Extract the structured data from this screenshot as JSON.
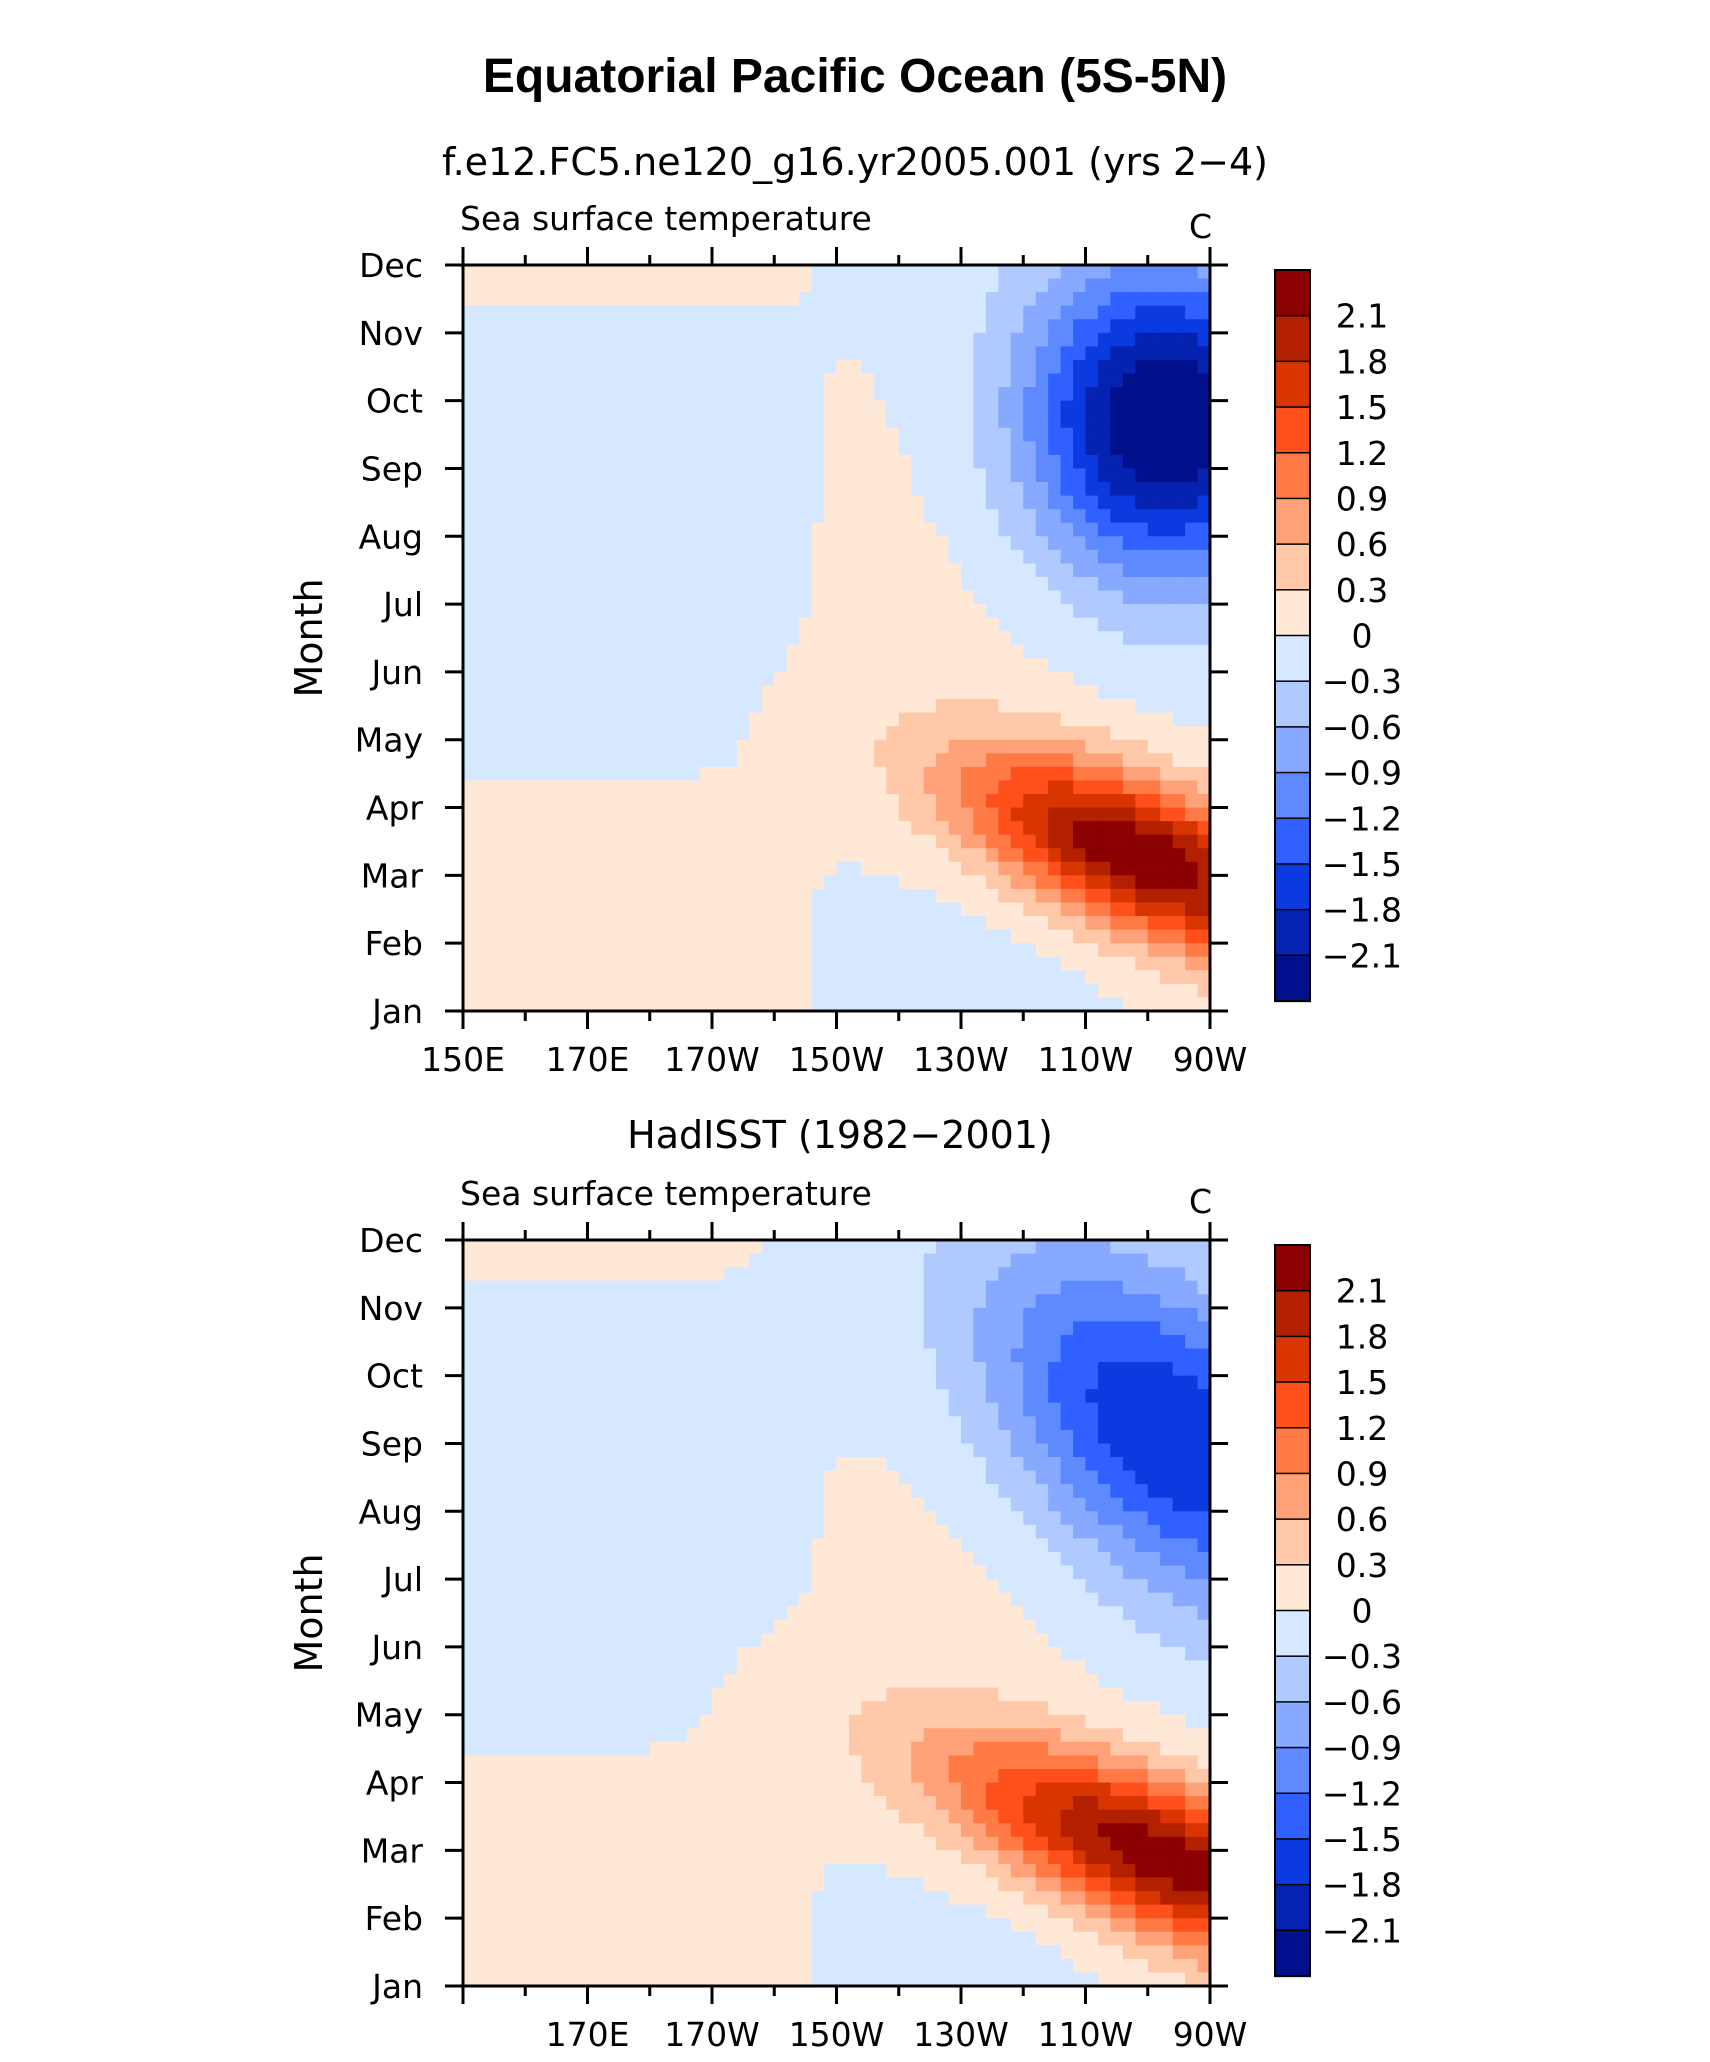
{
  "page_title": "Equatorial Pacific Ocean (5S-5N)",
  "legend_levels": [
    "2.1",
    "1.8",
    "1.5",
    "1.2",
    "0.9",
    "0.6",
    "0.3",
    "0",
    "−0.3",
    "−0.6",
    "−0.9",
    "−1.2",
    "−1.5",
    "−1.8",
    "−2.1"
  ],
  "colors": {
    "bins": [
      "#8b0000",
      "#b22000",
      "#d93500",
      "#ff4f1a",
      "#ff7a45",
      "#ffa27a",
      "#ffc8a8",
      "#ffe8d6",
      "#d6e8ff",
      "#b0caff",
      "#87a9ff",
      "#5f89ff",
      "#3060ff",
      "#0b3ae0",
      "#0522b0",
      "#00108a"
    ]
  },
  "chart_data": [
    {
      "type": "heatmap",
      "title": "f.e12.FC5.ne120_g16.yr2005.001 (yrs 2−4)",
      "left_string": "Sea surface temperature",
      "right_string": "C",
      "xlabel": "",
      "ylabel": "Month",
      "xlim": [
        150,
        270
      ],
      "x_tick_values": [
        150,
        170,
        190,
        210,
        230,
        250,
        270
      ],
      "x_tick_labels": [
        "150E",
        "170E",
        "170W",
        "150W",
        "130W",
        "110W",
        "90W"
      ],
      "y_tick_labels": [
        "Jan",
        "Feb",
        "Mar",
        "Apr",
        "May",
        "Jun",
        "Jul",
        "Aug",
        "Sep",
        "Oct",
        "Nov",
        "Dec"
      ],
      "units": "C",
      "levels": [
        -2.1,
        -1.8,
        -1.5,
        -1.2,
        -0.9,
        -0.6,
        -0.3,
        0,
        0.3,
        0.6,
        0.9,
        1.2,
        1.5,
        1.8,
        2.1
      ],
      "anomaly_features": [
        {
          "name": "warm",
          "peak_lon": 258,
          "peak_month": 3.3,
          "peak_value": 2.4,
          "width_lon": 22,
          "width_month": 1.5,
          "shift_lon_per_month": 12
        },
        {
          "name": "cold",
          "peak_lon": 262,
          "peak_month": 9.7,
          "peak_value": -2.5,
          "width_lon": 22,
          "width_month": 2.3,
          "shift_lon_per_month": 0
        }
      ]
    },
    {
      "type": "heatmap",
      "title": "HadISST (1982−2001)",
      "left_string": "Sea surface temperature",
      "right_string": "C",
      "xlabel": "",
      "ylabel": "Month",
      "xlim": [
        150,
        270
      ],
      "x_tick_values": [
        170,
        190,
        210,
        230,
        250,
        270
      ],
      "x_tick_labels": [
        "170E",
        "170W",
        "150W",
        "130W",
        "110W",
        "90W"
      ],
      "y_tick_labels": [
        "Jan",
        "Feb",
        "Mar",
        "Apr",
        "May",
        "Jun",
        "Jul",
        "Aug",
        "Sep",
        "Oct",
        "Nov",
        "Dec"
      ],
      "units": "C",
      "levels": [
        -2.1,
        -1.8,
        -1.5,
        -1.2,
        -0.9,
        -0.6,
        -0.3,
        0,
        0.3,
        0.6,
        0.9,
        1.2,
        1.5,
        1.8,
        2.1
      ],
      "anomaly_features": [
        {
          "name": "warm",
          "peak_lon": 262,
          "peak_month": 2.9,
          "peak_value": 2.3,
          "width_lon": 24,
          "width_month": 1.7,
          "shift_lon_per_month": 15
        },
        {
          "name": "cold",
          "peak_lon": 262,
          "peak_month": 9.2,
          "peak_value": -1.8,
          "width_lon": 26,
          "width_month": 2.6,
          "shift_lon_per_month": 5
        }
      ]
    }
  ]
}
